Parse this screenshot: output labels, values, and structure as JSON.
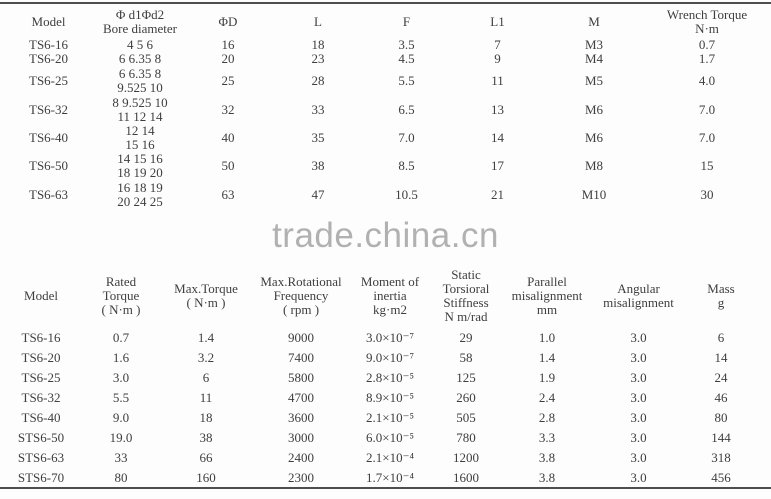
{
  "watermark": {
    "text": "trade.china.cn",
    "color": "#b1b1b1"
  },
  "colors": {
    "background": "#fdfdfd",
    "table_text": "#3e3e3e",
    "divider": "#4e4e4e",
    "watermark": "#b1b1b1"
  },
  "chart_data": [
    {
      "type": "table",
      "headers": [
        "Model",
        "Φ d1Φd2\nBore diameter",
        "ΦD",
        "L",
        "F",
        "L1",
        "M",
        "Wrench Torque\nN·m"
      ],
      "rows": [
        [
          "TS6-16",
          "4 5 6",
          "16",
          "18",
          "3.5",
          "7",
          "M3",
          "0.7"
        ],
        [
          "TS6-20",
          "6 6.35 8",
          "20",
          "23",
          "4.5",
          "9",
          "M4",
          "1.7"
        ],
        [
          "TS6-25",
          "6 6.35 8\n9.525 10",
          "25",
          "28",
          "5.5",
          "11",
          "M5",
          "4.0"
        ],
        [
          "TS6-32",
          "8 9.525 10\n11 12 14",
          "32",
          "33",
          "6.5",
          "13",
          "M6",
          "7.0"
        ],
        [
          "TS6-40",
          "12 14\n15 16",
          "40",
          "35",
          "7.0",
          "14",
          "M6",
          "7.0"
        ],
        [
          "TS6-50",
          "14 15 16\n18 19 20",
          "50",
          "38",
          "8.5",
          "17",
          "M8",
          "15"
        ],
        [
          "TS6-63",
          "16 18 19\n20 24 25",
          "63",
          "47",
          "10.5",
          "21",
          "M10",
          "30"
        ]
      ]
    },
    {
      "type": "table",
      "headers": [
        "Model",
        "Rated\nTorque\n( N·m )",
        "Max.Torque\n( N·m )",
        "Max.Rotational\nFrequency\n( rpm )",
        "Moment of\ninertia\nkg·m2",
        "Static\nTorsioral\nStiffness\nN m/rad",
        "Parallel\nmisalignment\nmm",
        "Angular\nmisalignment",
        "Mass\ng"
      ],
      "rows": [
        [
          "TS6-16",
          "0.7",
          "1.4",
          "9000",
          "3.0×10⁻⁷",
          "29",
          "1.0",
          "3.0",
          "6"
        ],
        [
          "TS6-20",
          "1.6",
          "3.2",
          "7400",
          "9.0×10⁻⁷",
          "58",
          "1.4",
          "3.0",
          "14"
        ],
        [
          "TS6-25",
          "3.0",
          "6",
          "5800",
          "2.8×10⁻⁵",
          "125",
          "1.9",
          "3.0",
          "24"
        ],
        [
          "TS6-32",
          "5.5",
          "11",
          "4700",
          "8.9×10⁻⁵",
          "260",
          "2.4",
          "3.0",
          "46"
        ],
        [
          "TS6-40",
          "9.0",
          "18",
          "3600",
          "2.1×10⁻⁵",
          "505",
          "2.8",
          "3.0",
          "80"
        ],
        [
          "STS6-50",
          "19.0",
          "38",
          "3000",
          "6.0×10⁻⁵",
          "780",
          "3.3",
          "3.0",
          "144"
        ],
        [
          "STS6-63",
          "33",
          "66",
          "2400",
          "2.1×10⁻⁴",
          "1200",
          "3.8",
          "3.0",
          "318"
        ],
        [
          "STS6-70",
          "80",
          "160",
          "2300",
          "1.7×10⁻⁴",
          "1600",
          "3.8",
          "3.0",
          "456"
        ]
      ]
    }
  ]
}
